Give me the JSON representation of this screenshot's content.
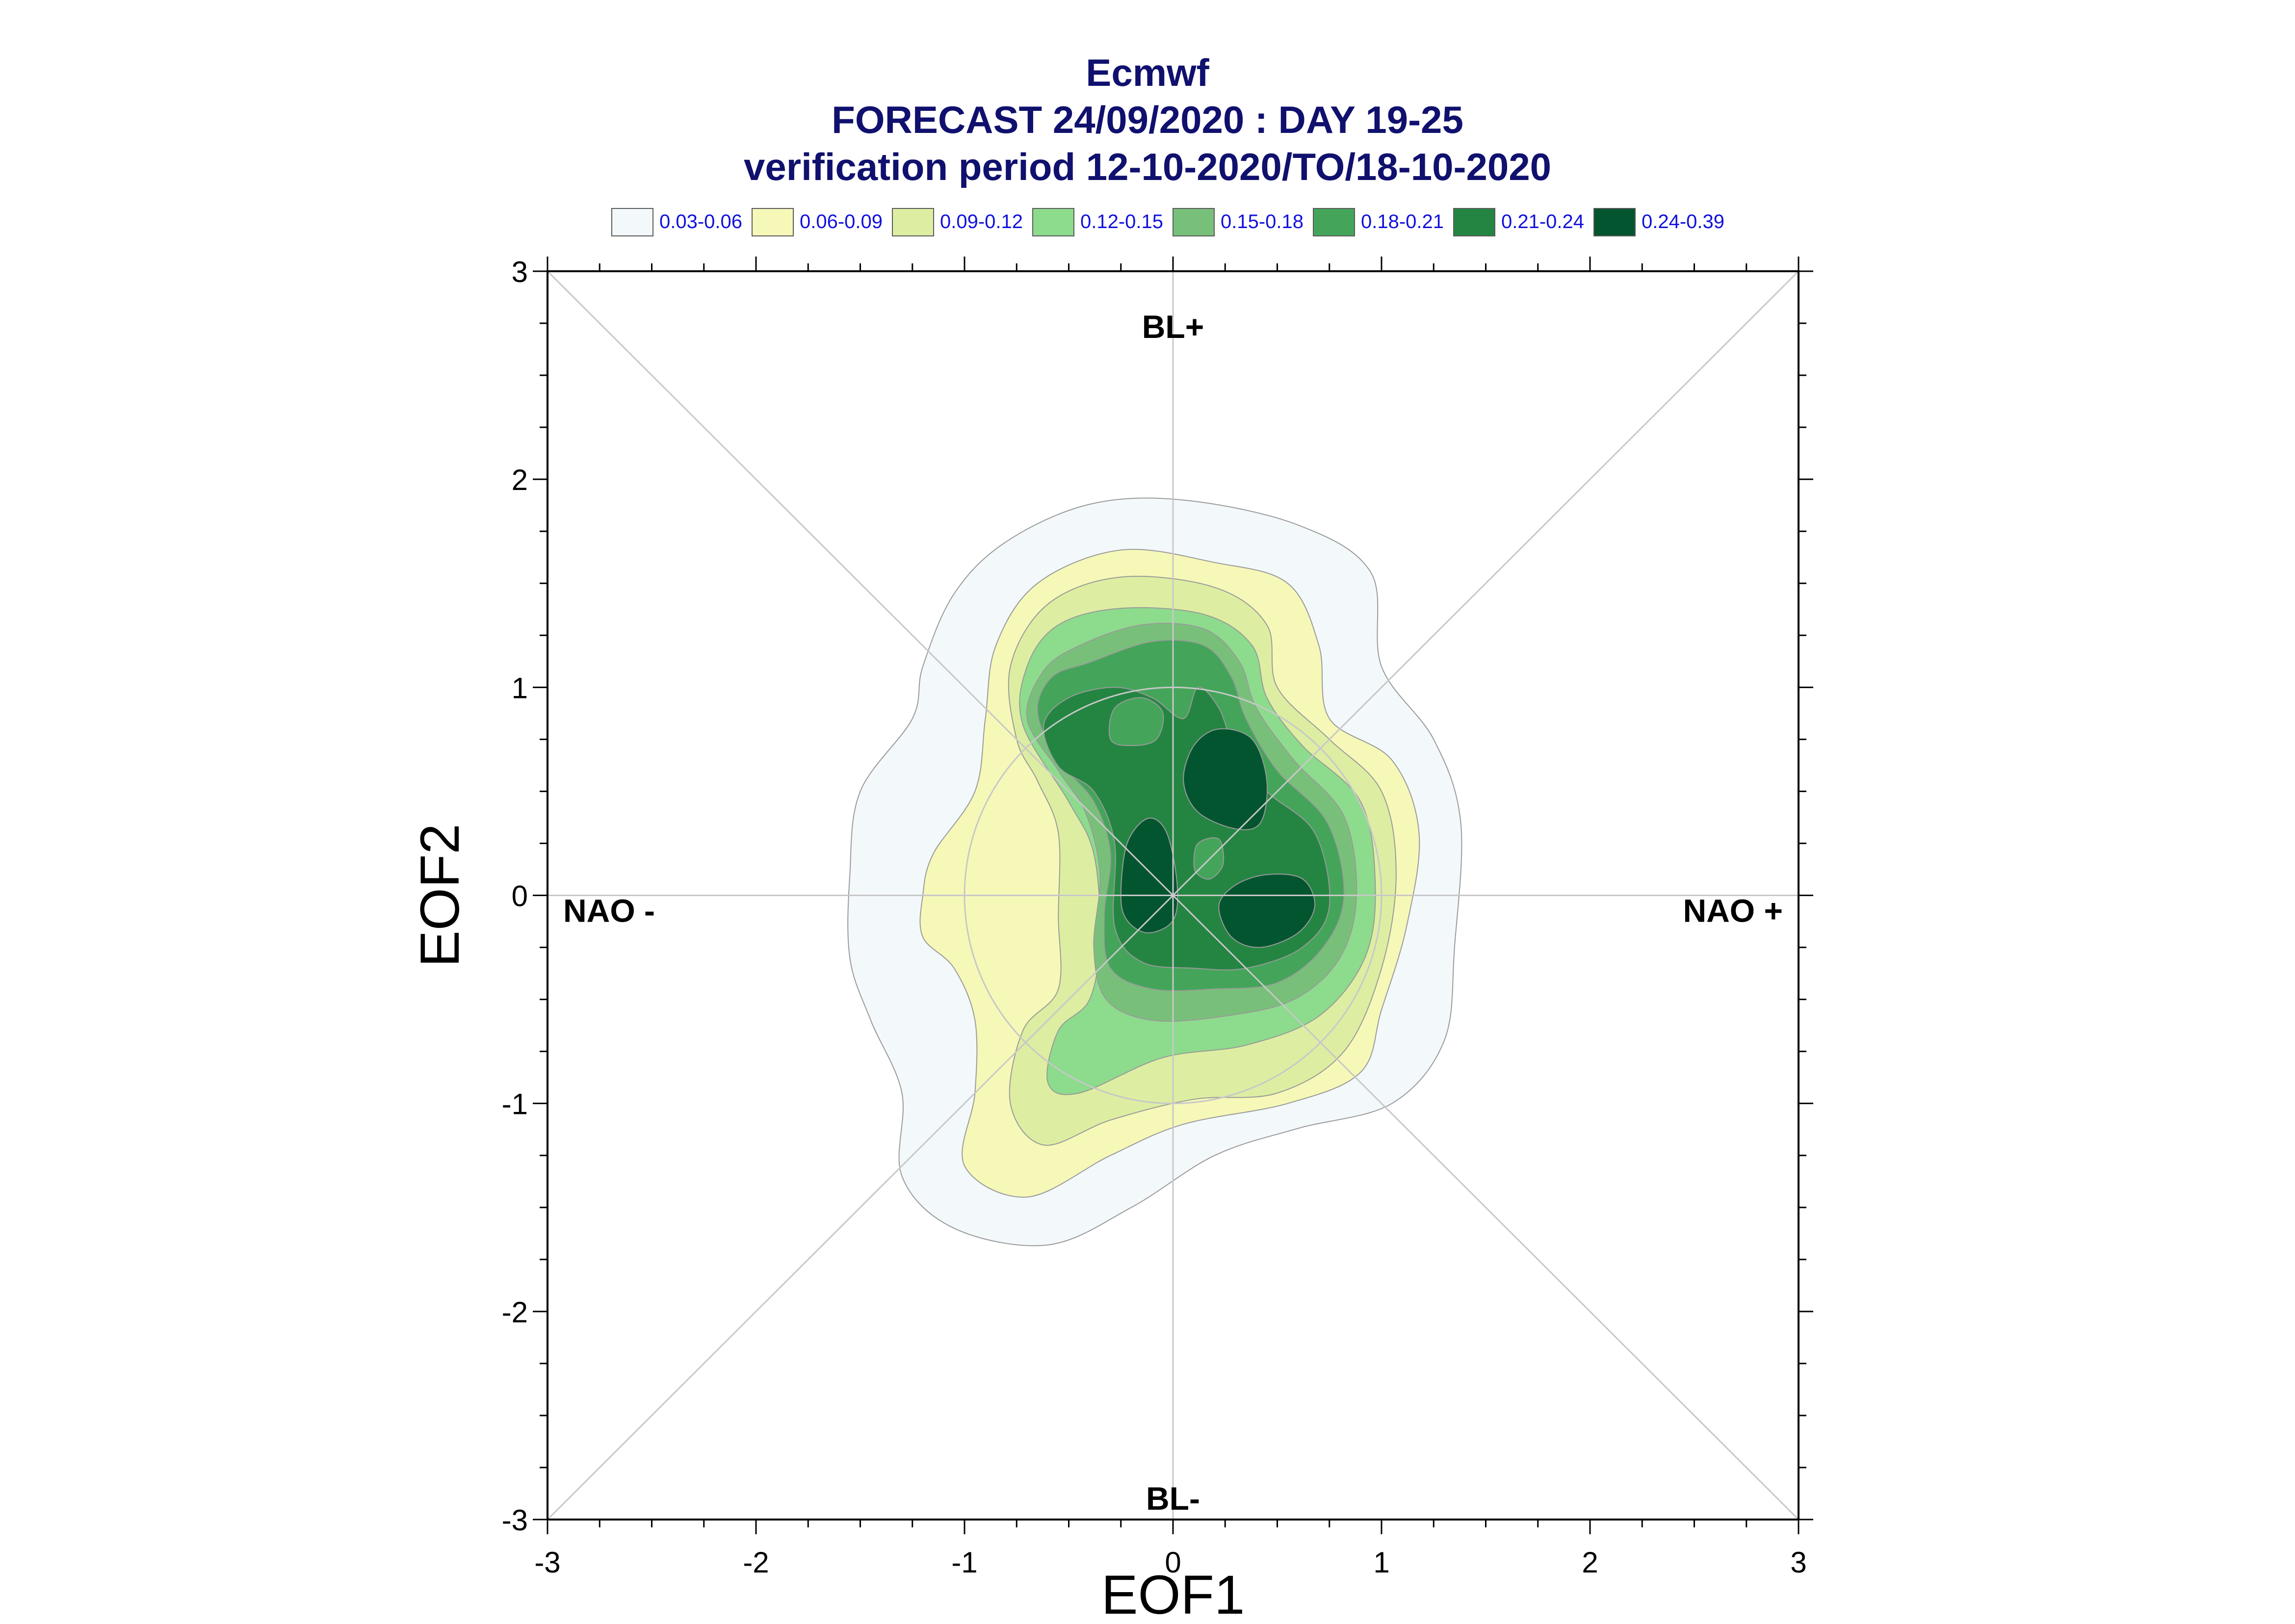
{
  "header": {
    "title": "Ecmwf",
    "subtitle": "FORECAST 24/09/2020 : DAY 19-25",
    "period": "verification period 12-10-2020/TO/18-10-2020"
  },
  "legend": [
    {
      "label": "0.03-0.06",
      "color": "#f3f8fb"
    },
    {
      "label": "0.06-0.09",
      "color": "#f6f8b8"
    },
    {
      "label": "0.09-0.12",
      "color": "#ddeea2"
    },
    {
      "label": "0.12-0.15",
      "color": "#8ddb8c"
    },
    {
      "label": "0.15-0.18",
      "color": "#78c07a"
    },
    {
      "label": "0.18-0.21",
      "color": "#44a55a"
    },
    {
      "label": "0.21-0.24",
      "color": "#248542"
    },
    {
      "label": "0.24-0.39",
      "color": "#03552f"
    }
  ],
  "chart_data": {
    "type": "contour",
    "xlabel": "EOF1",
    "ylabel": "EOF2",
    "xlim": [
      -3,
      3
    ],
    "ylim": [
      -3,
      3
    ],
    "x_ticks": [
      "-3",
      "-2",
      "-1",
      "0",
      "1",
      "2",
      "3"
    ],
    "y_ticks": [
      "-3",
      "-2",
      "-1",
      "0",
      "1",
      "2",
      "3"
    ],
    "regime_labels": {
      "top": "BL+",
      "bottom": "BL-",
      "left": "NAO -",
      "right": "NAO +"
    },
    "reference_circles_radius": [
      1
    ],
    "diagonal_lines": true,
    "density_levels": [
      {
        "range": "0.03-0.06",
        "color": "#f3f8fb",
        "outline": [
          [
            -1.55,
            0.1
          ],
          [
            -1.5,
            0.5
          ],
          [
            -1.25,
            0.85
          ],
          [
            -1.2,
            1.1
          ],
          [
            -1.05,
            1.45
          ],
          [
            -0.8,
            1.7
          ],
          [
            -0.4,
            1.88
          ],
          [
            0.05,
            1.9
          ],
          [
            0.6,
            1.78
          ],
          [
            0.95,
            1.55
          ],
          [
            1.0,
            1.1
          ],
          [
            1.25,
            0.75
          ],
          [
            1.38,
            0.35
          ],
          [
            1.35,
            -0.25
          ],
          [
            1.3,
            -0.7
          ],
          [
            1.05,
            -1.0
          ],
          [
            0.6,
            -1.12
          ],
          [
            0.2,
            -1.25
          ],
          [
            -0.2,
            -1.5
          ],
          [
            -0.6,
            -1.68
          ],
          [
            -1.05,
            -1.6
          ],
          [
            -1.3,
            -1.35
          ],
          [
            -1.3,
            -0.95
          ],
          [
            -1.45,
            -0.6
          ],
          [
            -1.55,
            -0.3
          ]
        ]
      },
      {
        "range": "0.06-0.09",
        "color": "#f6f8b8",
        "outline": [
          [
            -1.2,
            0.0
          ],
          [
            -1.15,
            0.2
          ],
          [
            -0.95,
            0.5
          ],
          [
            -0.9,
            0.85
          ],
          [
            -0.85,
            1.2
          ],
          [
            -0.65,
            1.5
          ],
          [
            -0.25,
            1.66
          ],
          [
            0.2,
            1.6
          ],
          [
            0.55,
            1.5
          ],
          [
            0.7,
            1.2
          ],
          [
            0.75,
            0.85
          ],
          [
            1.05,
            0.65
          ],
          [
            1.18,
            0.3
          ],
          [
            1.12,
            -0.15
          ],
          [
            1.0,
            -0.55
          ],
          [
            0.9,
            -0.85
          ],
          [
            0.55,
            -1.0
          ],
          [
            0.05,
            -1.1
          ],
          [
            -0.3,
            -1.25
          ],
          [
            -0.7,
            -1.45
          ],
          [
            -1.0,
            -1.3
          ],
          [
            -0.95,
            -0.95
          ],
          [
            -0.95,
            -0.6
          ],
          [
            -1.05,
            -0.35
          ],
          [
            -1.2,
            -0.2
          ]
        ]
      },
      {
        "range": "0.09-0.12",
        "color": "#ddeea2",
        "outline": [
          [
            -0.75,
            0.75
          ],
          [
            -0.78,
            1.1
          ],
          [
            -0.6,
            1.4
          ],
          [
            -0.25,
            1.53
          ],
          [
            0.2,
            1.48
          ],
          [
            0.45,
            1.3
          ],
          [
            0.5,
            1.0
          ],
          [
            0.75,
            0.75
          ],
          [
            1.0,
            0.5
          ],
          [
            1.07,
            0.1
          ],
          [
            1.0,
            -0.35
          ],
          [
            0.82,
            -0.75
          ],
          [
            0.5,
            -0.95
          ],
          [
            0.1,
            -0.98
          ],
          [
            -0.3,
            -1.08
          ],
          [
            -0.62,
            -1.2
          ],
          [
            -0.78,
            -1.0
          ],
          [
            -0.72,
            -0.65
          ],
          [
            -0.55,
            -0.45
          ],
          [
            -0.55,
            -0.1
          ],
          [
            -0.55,
            0.3
          ],
          [
            -0.65,
            0.55
          ]
        ]
      },
      {
        "range": "0.12-0.15",
        "color": "#8ddb8c",
        "outline": [
          [
            -0.72,
            0.82
          ],
          [
            -0.7,
            1.1
          ],
          [
            -0.55,
            1.3
          ],
          [
            -0.25,
            1.38
          ],
          [
            0.15,
            1.35
          ],
          [
            0.38,
            1.2
          ],
          [
            0.45,
            0.95
          ],
          [
            0.62,
            0.72
          ],
          [
            0.9,
            0.45
          ],
          [
            0.97,
            0.05
          ],
          [
            0.92,
            -0.3
          ],
          [
            0.7,
            -0.58
          ],
          [
            0.35,
            -0.72
          ],
          [
            -0.05,
            -0.78
          ],
          [
            -0.45,
            -0.95
          ],
          [
            -0.6,
            -0.9
          ],
          [
            -0.55,
            -0.65
          ],
          [
            -0.4,
            -0.5
          ],
          [
            -0.35,
            -0.2
          ],
          [
            -0.38,
            0.2
          ],
          [
            -0.5,
            0.45
          ]
        ]
      },
      {
        "range": "0.15-0.18",
        "color": "#78c07a",
        "outline": [
          [
            -0.7,
            0.85
          ],
          [
            -0.62,
            1.08
          ],
          [
            -0.45,
            1.2
          ],
          [
            -0.15,
            1.3
          ],
          [
            0.15,
            1.28
          ],
          [
            0.32,
            1.12
          ],
          [
            0.4,
            0.9
          ],
          [
            0.58,
            0.65
          ],
          [
            0.82,
            0.38
          ],
          [
            0.88,
            0.0
          ],
          [
            0.8,
            -0.3
          ],
          [
            0.58,
            -0.5
          ],
          [
            0.25,
            -0.58
          ],
          [
            -0.1,
            -0.6
          ],
          [
            -0.32,
            -0.5
          ],
          [
            -0.38,
            -0.25
          ],
          [
            -0.35,
            0.1
          ],
          [
            -0.42,
            0.4
          ],
          [
            -0.55,
            0.6
          ]
        ]
      },
      {
        "range": "0.18-0.21",
        "color": "#44a55a",
        "outline": [
          [
            -0.65,
            0.88
          ],
          [
            -0.58,
            1.05
          ],
          [
            -0.4,
            1.12
          ],
          [
            -0.1,
            1.22
          ],
          [
            0.15,
            1.2
          ],
          [
            0.28,
            1.05
          ],
          [
            0.35,
            0.85
          ],
          [
            0.5,
            0.6
          ],
          [
            0.74,
            0.35
          ],
          [
            0.82,
            0.0
          ],
          [
            0.72,
            -0.25
          ],
          [
            0.5,
            -0.42
          ],
          [
            0.2,
            -0.45
          ],
          [
            -0.1,
            -0.45
          ],
          [
            -0.3,
            -0.35
          ],
          [
            -0.33,
            -0.1
          ],
          [
            -0.3,
            0.2
          ],
          [
            -0.38,
            0.45
          ],
          [
            -0.55,
            0.65
          ]
        ]
      },
      {
        "range": "0.21-0.24",
        "color": "#248542",
        "outline": [
          [
            -0.62,
            0.82
          ],
          [
            -0.5,
            0.95
          ],
          [
            -0.28,
            1.0
          ],
          [
            -0.1,
            0.95
          ],
          [
            0.05,
            0.85
          ],
          [
            0.12,
            1.0
          ],
          [
            0.22,
            0.9
          ],
          [
            0.3,
            0.7
          ],
          [
            0.45,
            0.5
          ],
          [
            0.68,
            0.3
          ],
          [
            0.75,
            -0.05
          ],
          [
            0.62,
            -0.25
          ],
          [
            0.35,
            -0.35
          ],
          [
            0.1,
            -0.35
          ],
          [
            -0.15,
            -0.32
          ],
          [
            -0.28,
            -0.15
          ],
          [
            -0.28,
            0.25
          ],
          [
            -0.38,
            0.5
          ],
          [
            -0.55,
            0.62
          ]
        ]
      },
      {
        "range": "0.24-0.39",
        "color": "#03552f",
        "outline_groups": [
          [
            [
              0.05,
              0.55
            ],
            [
              0.1,
              0.72
            ],
            [
              0.22,
              0.8
            ],
            [
              0.38,
              0.75
            ],
            [
              0.45,
              0.55
            ],
            [
              0.42,
              0.35
            ],
            [
              0.3,
              0.32
            ],
            [
              0.12,
              0.4
            ]
          ],
          [
            [
              -0.25,
              0.0
            ],
            [
              -0.22,
              0.25
            ],
            [
              -0.12,
              0.37
            ],
            [
              -0.03,
              0.3
            ],
            [
              0.02,
              0.05
            ],
            [
              0.0,
              -0.12
            ],
            [
              -0.12,
              -0.18
            ],
            [
              -0.22,
              -0.12
            ]
          ],
          [
            [
              0.22,
              -0.05
            ],
            [
              0.3,
              0.05
            ],
            [
              0.45,
              0.1
            ],
            [
              0.62,
              0.08
            ],
            [
              0.68,
              -0.05
            ],
            [
              0.6,
              -0.18
            ],
            [
              0.42,
              -0.25
            ],
            [
              0.28,
              -0.2
            ]
          ]
        ]
      },
      {
        "range": "0.18-0.21",
        "color": "#44a55a",
        "outline": [
          [
            0.1,
            0.15
          ],
          [
            0.12,
            0.25
          ],
          [
            0.22,
            0.27
          ],
          [
            0.24,
            0.15
          ],
          [
            0.18,
            0.08
          ],
          [
            0.12,
            0.1
          ]
        ]
      },
      {
        "range": "0.18-0.21",
        "color": "#44a55a",
        "outline": [
          [
            -0.3,
            0.75
          ],
          [
            -0.28,
            0.9
          ],
          [
            -0.15,
            0.95
          ],
          [
            -0.05,
            0.88
          ],
          [
            -0.08,
            0.75
          ],
          [
            -0.2,
            0.72
          ]
        ]
      }
    ]
  }
}
